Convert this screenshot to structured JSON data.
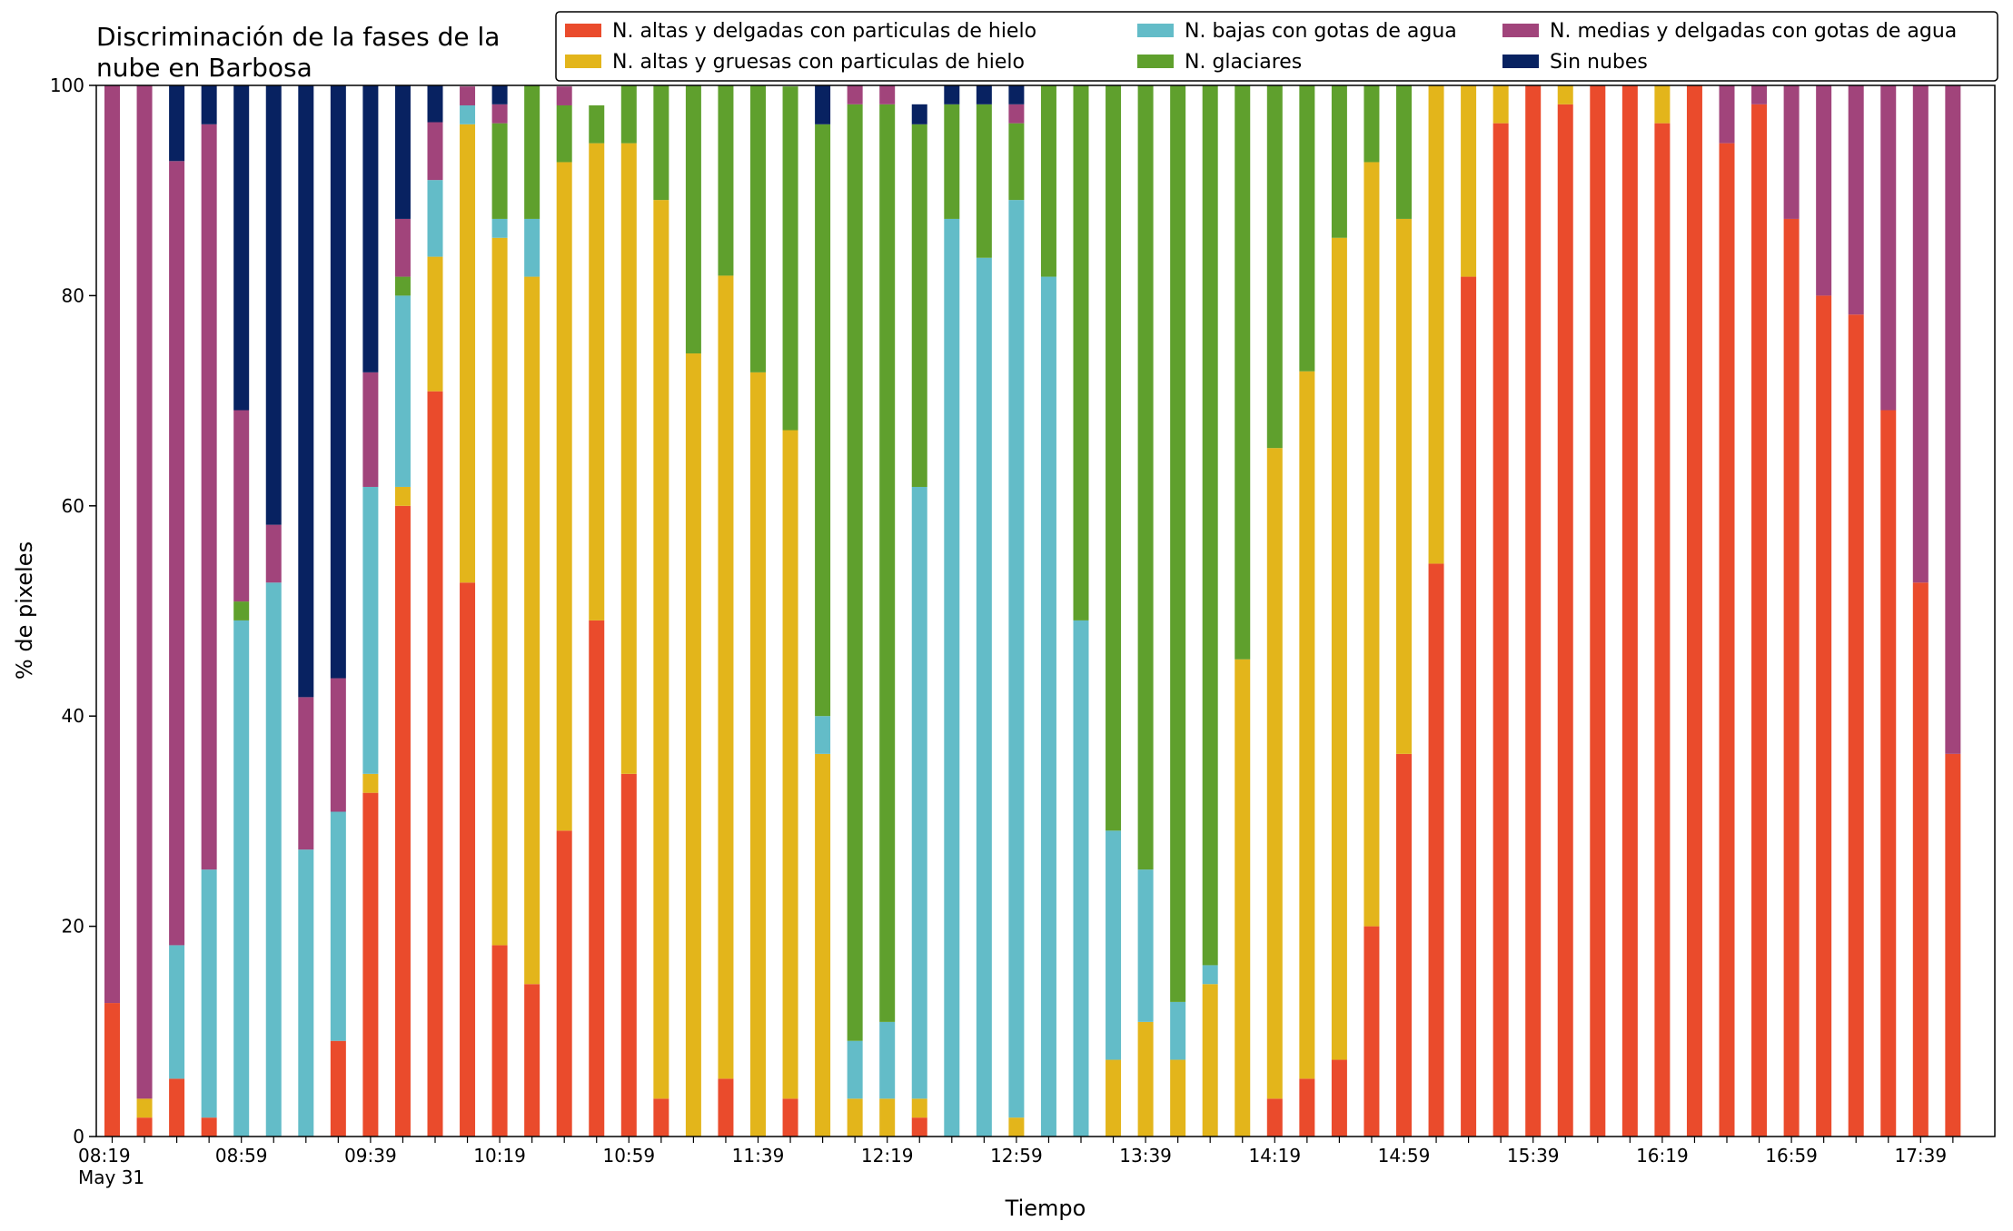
{
  "chart_data": {
    "type": "bar",
    "stacked": true,
    "title": [
      "Discriminación de la fases de la",
      "nube en Barbosa"
    ],
    "xlabel": "Tiempo",
    "ylabel": "% de pixeles",
    "ylim": [
      0,
      100
    ],
    "yticks": [
      0,
      20,
      40,
      60,
      80,
      100
    ],
    "grid": false,
    "legend_position": "top-right",
    "x": [
      "08:19",
      "08:29",
      "08:39",
      "08:49",
      "08:59",
      "09:09",
      "09:19",
      "09:29",
      "09:39",
      "09:49",
      "09:59",
      "10:09",
      "10:19",
      "10:29",
      "10:39",
      "10:49",
      "10:59",
      "11:09",
      "11:19",
      "11:29",
      "11:39",
      "11:49",
      "11:59",
      "12:09",
      "12:19",
      "12:29",
      "12:39",
      "12:49",
      "12:59",
      "13:09",
      "13:19",
      "13:29",
      "13:39",
      "13:49",
      "13:59",
      "14:09",
      "14:19",
      "14:29",
      "14:39",
      "14:49",
      "14:59",
      "15:09",
      "15:19",
      "15:29",
      "15:39",
      "15:49",
      "15:59",
      "16:09",
      "16:19",
      "16:29",
      "16:39",
      "16:49",
      "16:59",
      "17:09",
      "17:19",
      "17:29",
      "17:39",
      "17:49"
    ],
    "xtick_labels": [
      {
        "text": "08:19",
        "sub": "May 31"
      },
      {
        "text": "08:59",
        "sub": ""
      },
      {
        "text": "09:39",
        "sub": ""
      },
      {
        "text": "10:19",
        "sub": ""
      },
      {
        "text": "10:59",
        "sub": ""
      },
      {
        "text": "11:39",
        "sub": ""
      },
      {
        "text": "12:19",
        "sub": ""
      },
      {
        "text": "12:59",
        "sub": ""
      },
      {
        "text": "13:39",
        "sub": ""
      },
      {
        "text": "14:19",
        "sub": ""
      },
      {
        "text": "14:59",
        "sub": ""
      },
      {
        "text": "15:39",
        "sub": ""
      },
      {
        "text": "16:19",
        "sub": ""
      },
      {
        "text": "16:59",
        "sub": ""
      },
      {
        "text": "17:39",
        "sub": ""
      }
    ],
    "series": [
      {
        "name": "N. altas y delgadas con particulas de hielo",
        "color": "#EA4B2C",
        "values": [
          12.7,
          1.8,
          5.5,
          1.8,
          0,
          0,
          0,
          9.1,
          32.7,
          60,
          70.9,
          52.7,
          18.2,
          14.5,
          29.1,
          49.1,
          34.5,
          3.6,
          0,
          5.5,
          0,
          3.6,
          0,
          0,
          0,
          1.8,
          0,
          0,
          0,
          0,
          0,
          0,
          0,
          0,
          0,
          0,
          3.6,
          5.5,
          7.3,
          20,
          36.4,
          54.5,
          81.8,
          96.4,
          100,
          98.2,
          100,
          100,
          96.4,
          100,
          94.5,
          98.2,
          87.3,
          80,
          78.2,
          69.1,
          52.7,
          36.4
        ]
      },
      {
        "name": "N. altas y gruesas con particulas de hielo",
        "color": "#E3B51B",
        "values": [
          0,
          1.8,
          0,
          0,
          0,
          0,
          0,
          0,
          1.8,
          1.8,
          12.8,
          43.6,
          67.3,
          67.3,
          63.6,
          45.4,
          60,
          85.5,
          74.5,
          76.4,
          72.7,
          63.6,
          36.4,
          3.6,
          3.6,
          1.8,
          0,
          0,
          1.8,
          0,
          0,
          7.3,
          10.9,
          7.3,
          14.5,
          45.4,
          61.9,
          67.3,
          78.2,
          72.7,
          50.9,
          45.5,
          18.2,
          3.6,
          0,
          1.8,
          0,
          0,
          3.6,
          0,
          0,
          0,
          0,
          0,
          0,
          0,
          0,
          0
        ]
      },
      {
        "name": "N. bajas con gotas de agua",
        "color": "#63BCC8",
        "values": [
          0,
          0,
          12.7,
          23.6,
          49.1,
          52.7,
          27.3,
          21.8,
          27.3,
          18.2,
          7.3,
          1.8,
          1.8,
          5.5,
          0,
          0,
          0,
          0,
          0,
          0,
          0,
          0,
          3.6,
          5.5,
          7.3,
          58.2,
          87.3,
          83.6,
          87.3,
          81.8,
          49.1,
          21.8,
          14.5,
          5.5,
          1.8,
          0,
          0,
          0,
          0,
          0,
          0,
          0,
          0,
          0,
          0,
          0,
          0,
          0,
          0,
          0,
          0,
          0,
          0,
          0,
          0,
          0,
          0,
          0
        ]
      },
      {
        "name": "N. glaciares",
        "color": "#5FA02D",
        "values": [
          0,
          0,
          0,
          0,
          1.8,
          0,
          0,
          0,
          0,
          1.8,
          0,
          0,
          9.1,
          12.7,
          5.4,
          3.6,
          5.5,
          10.9,
          25.5,
          18.1,
          27.3,
          32.7,
          56.3,
          89.1,
          87.3,
          34.5,
          10.9,
          14.6,
          7.3,
          18.2,
          50.9,
          70.9,
          74.6,
          87.2,
          83.7,
          54.6,
          34.5,
          27.2,
          14.5,
          7.3,
          12.7,
          0,
          0,
          0,
          0,
          0,
          0,
          0,
          0,
          0,
          0,
          0,
          0,
          0,
          0,
          0,
          0,
          0
        ]
      },
      {
        "name": "N. medias y delgadas con gotas de agua",
        "color": "#A1447B",
        "values": [
          87.3,
          96.4,
          74.6,
          70.9,
          18.2,
          5.5,
          14.5,
          12.7,
          10.9,
          5.5,
          5.5,
          1.8,
          1.8,
          0,
          1.8,
          0,
          0,
          0,
          0,
          0,
          0,
          0,
          0,
          1.8,
          1.8,
          0,
          0,
          0,
          1.8,
          0,
          0,
          0,
          0,
          0,
          0,
          0,
          0,
          0,
          0,
          0,
          0,
          0,
          0,
          0,
          0,
          0,
          0,
          0,
          0,
          0,
          5.5,
          1.8,
          12.7,
          20,
          21.8,
          30.9,
          47.3,
          63.6
        ]
      },
      {
        "name": "Sin nubes",
        "color": "#082261",
        "values": [
          0,
          0,
          7.2,
          3.7,
          30.9,
          41.8,
          58.2,
          56.4,
          27.3,
          12.7,
          3.5,
          0,
          1.8,
          0,
          0,
          0,
          0,
          0,
          0,
          0,
          0,
          0,
          3.7,
          0,
          0,
          1.9,
          1.8,
          1.8,
          1.8,
          0,
          0,
          0,
          0,
          0,
          0,
          0,
          0,
          0,
          0,
          0,
          0,
          0,
          0,
          0,
          0,
          0,
          0,
          0,
          0,
          0,
          0,
          0,
          0,
          0,
          0,
          0,
          0,
          0
        ]
      }
    ]
  }
}
